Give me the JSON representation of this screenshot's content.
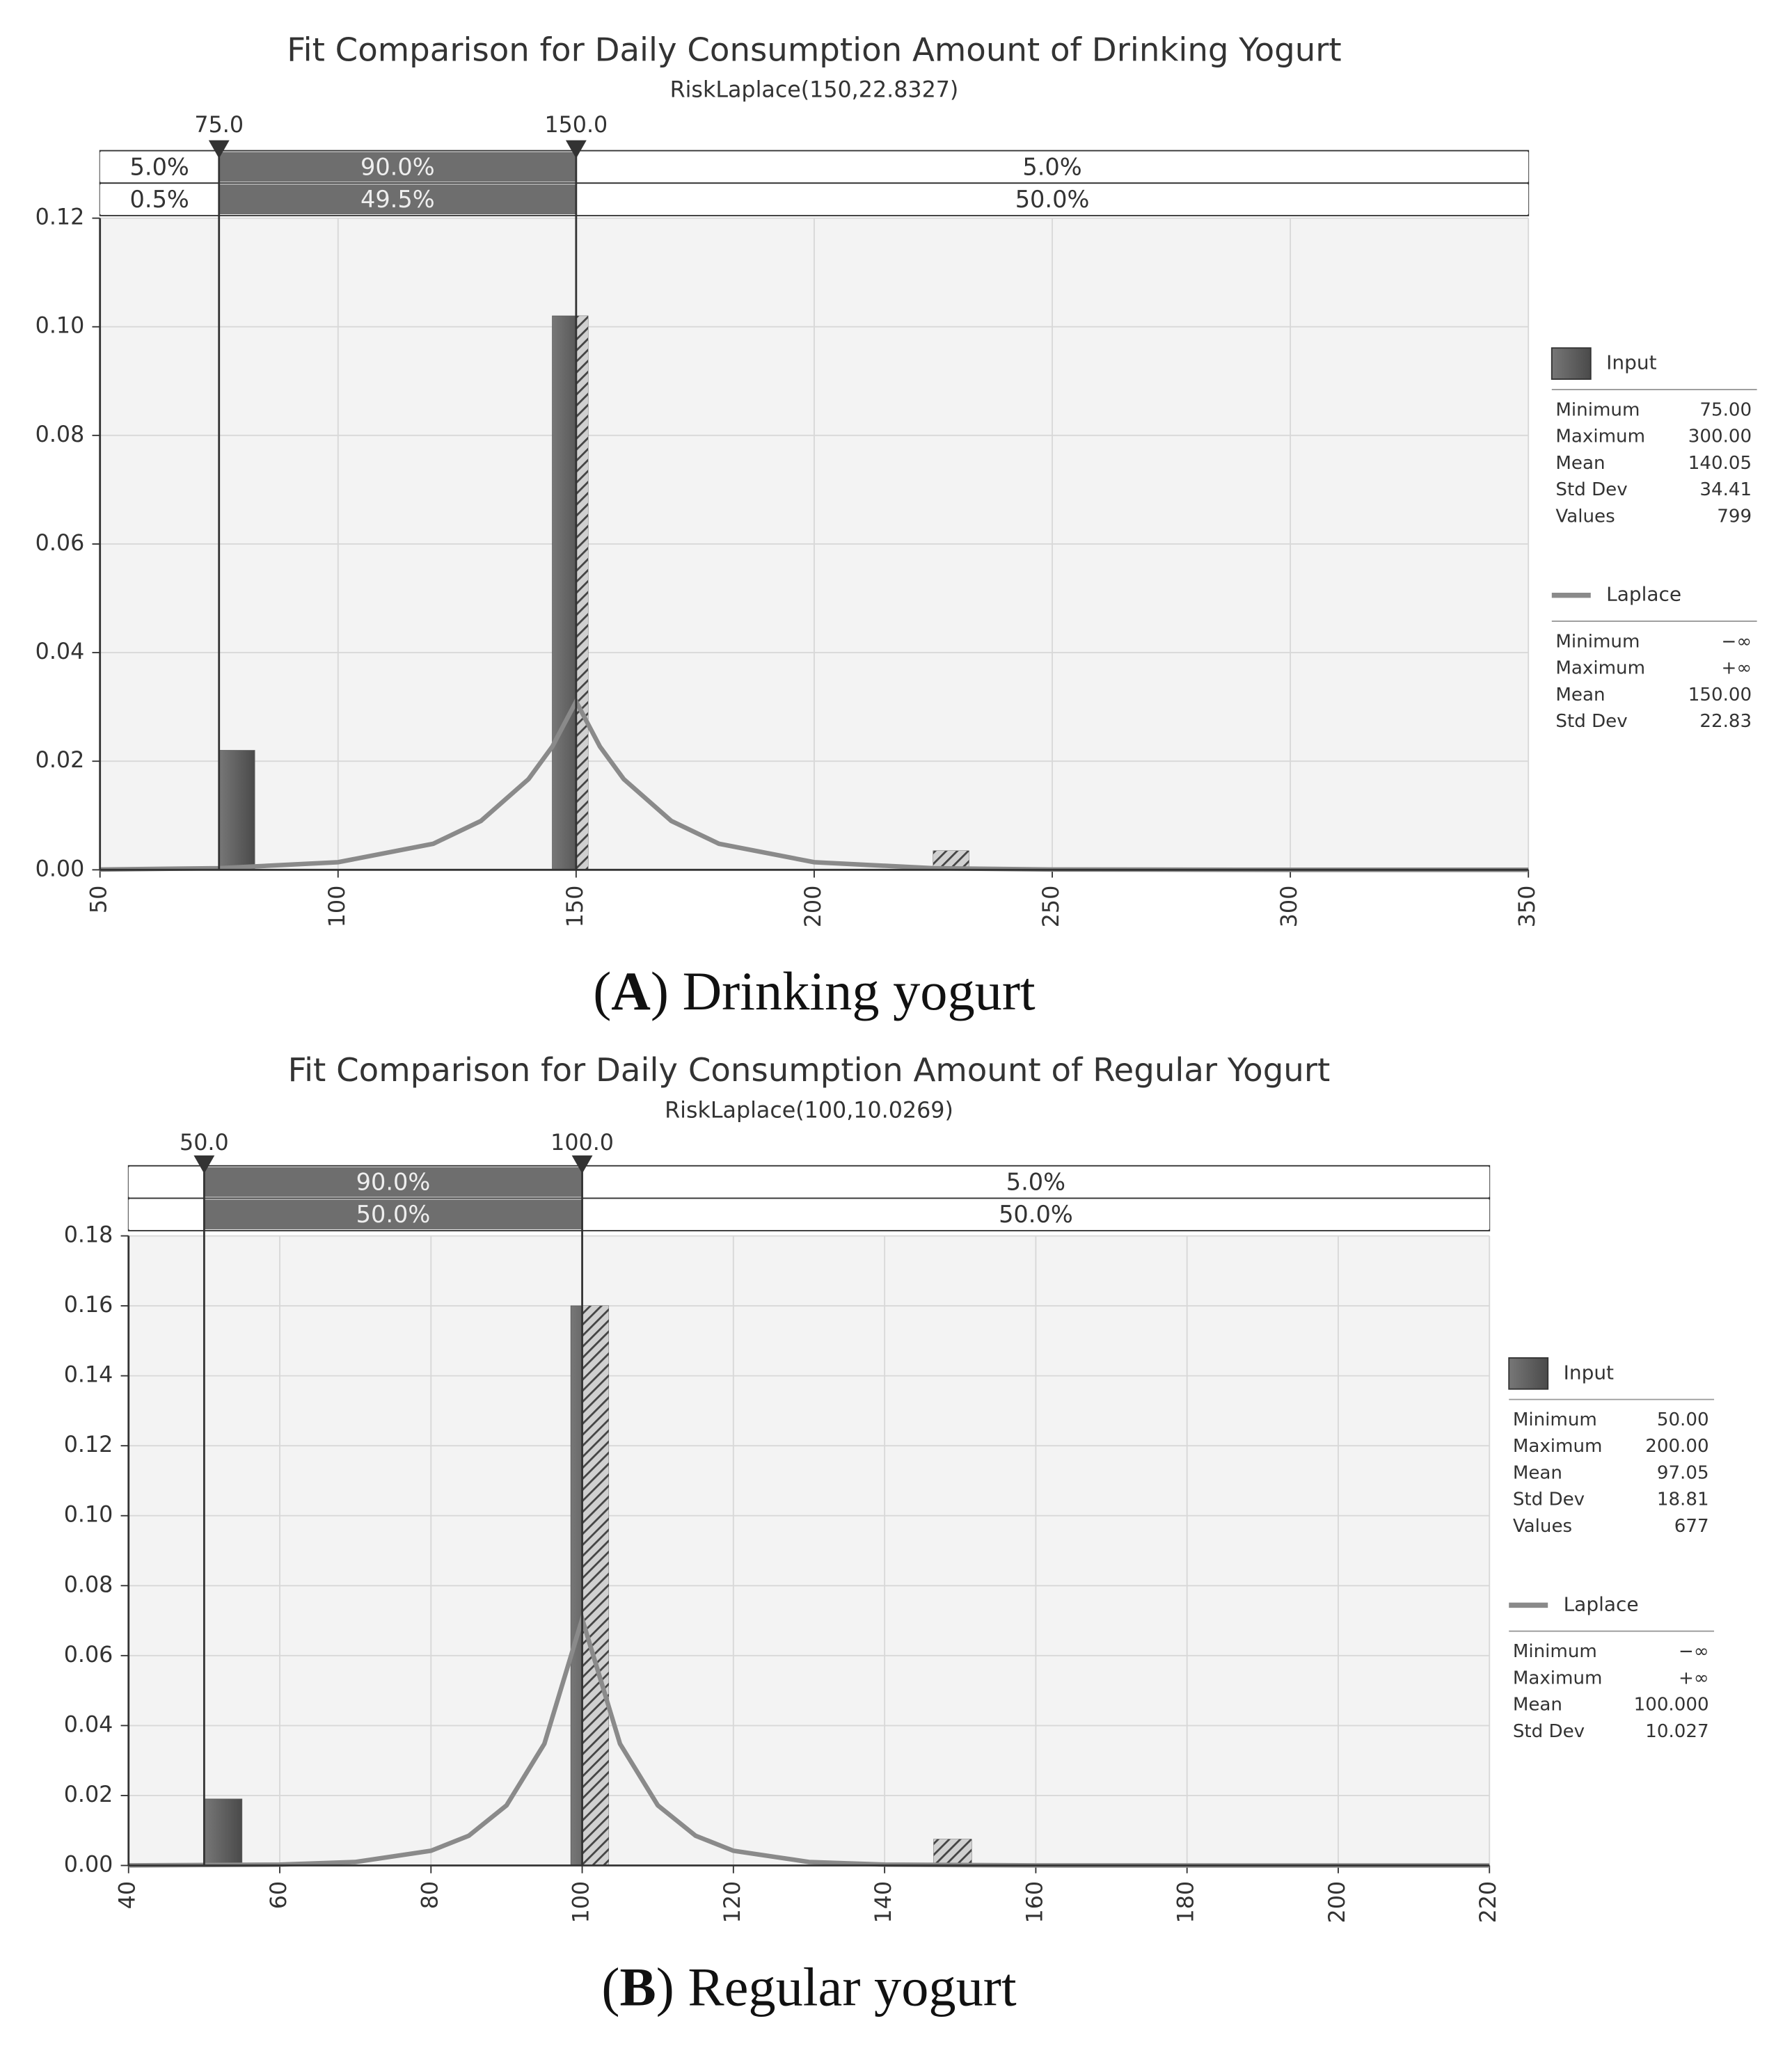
{
  "chart_data": [
    {
      "type": "histogram",
      "title": "Fit Comparison for Daily Consumption Amount of Drinking Yogurt",
      "subtitle": "RiskLaplace(150,22.8327)",
      "caption": "(A) Drinking yogurt",
      "xlim": [
        50,
        350
      ],
      "xticks": [
        50,
        100,
        150,
        200,
        250,
        300,
        350
      ],
      "ylim": [
        0,
        0.12
      ],
      "yticks": [
        {
          "value": 0,
          "label": "0.00"
        },
        {
          "value": 0.02,
          "label": "0.02"
        },
        {
          "value": 0.04,
          "label": "0.04"
        },
        {
          "value": 0.06,
          "label": "0.06"
        },
        {
          "value": 0.08,
          "label": "0.08"
        },
        {
          "value": 0.1,
          "label": "0.10"
        },
        {
          "value": 0.12,
          "label": "0.12"
        }
      ],
      "grid": true,
      "delimiters": [
        {
          "value": 75,
          "label": "75.0"
        },
        {
          "value": 150,
          "label": "150.0"
        }
      ],
      "band_rows": [
        {
          "values": [
            5,
            90,
            5
          ],
          "value_labels": [
            "5.0%",
            "90.0%",
            "5.0%"
          ]
        },
        {
          "values": [
            0.5,
            49.5,
            50
          ],
          "value_labels": [
            "0.5%",
            "49.5%",
            "50.0%"
          ]
        }
      ],
      "series": [
        {
          "name": "Input",
          "kind": "bars",
          "color": "#5e5e5e",
          "bins": [
            75,
            82.5,
            145,
            152.5,
            225,
            232.5,
            300
          ],
          "values": [
            0.022,
            0,
            0.102,
            0,
            0.0035,
            0
          ],
          "stats": [
            [
              "Minimum",
              "75.00"
            ],
            [
              "Maximum",
              "300.00"
            ],
            [
              "Mean",
              "140.05"
            ],
            [
              "Std Dev",
              "34.41"
            ],
            [
              "Values",
              "799"
            ]
          ]
        },
        {
          "name": "Laplace",
          "kind": "line",
          "color": "#8a8a8a",
          "x": [
            50,
            75,
            100,
            120,
            130,
            140,
            145,
            150,
            155,
            160,
            170,
            180,
            200,
            225,
            250,
            300,
            350
          ],
          "values": [
            6e-05,
            0.0003,
            0.0014,
            0.0048,
            0.009,
            0.0167,
            0.0227,
            0.031,
            0.0227,
            0.0167,
            0.009,
            0.0048,
            0.0014,
            0.0003,
            6e-05,
            0,
            0
          ],
          "stats": [
            [
              "Minimum",
              "−∞"
            ],
            [
              "Maximum",
              "+∞"
            ],
            [
              "Mean",
              "150.00"
            ],
            [
              "Std Dev",
              "22.83"
            ]
          ]
        }
      ]
    },
    {
      "type": "histogram",
      "title": "Fit Comparison for Daily Consumption Amount of Regular Yogurt",
      "subtitle": "RiskLaplace(100,10.0269)",
      "caption": "(B) Regular yogurt",
      "xlim": [
        40,
        220
      ],
      "xticks": [
        40,
        60,
        80,
        100,
        120,
        140,
        160,
        180,
        200,
        220
      ],
      "ylim": [
        0,
        0.18
      ],
      "yticks": [
        {
          "value": 0,
          "label": "0.00"
        },
        {
          "value": 0.02,
          "label": "0.02"
        },
        {
          "value": 0.04,
          "label": "0.04"
        },
        {
          "value": 0.06,
          "label": "0.06"
        },
        {
          "value": 0.08,
          "label": "0.08"
        },
        {
          "value": 0.1,
          "label": "0.10"
        },
        {
          "value": 0.12,
          "label": "0.12"
        },
        {
          "value": 0.14,
          "label": "0.14"
        },
        {
          "value": 0.16,
          "label": "0.16"
        },
        {
          "value": 0.18,
          "label": "0.18"
        }
      ],
      "grid": true,
      "delimiters": [
        {
          "value": 50,
          "label": "50.0"
        },
        {
          "value": 100,
          "label": "100.0"
        }
      ],
      "band_rows": [
        {
          "values": [
            null,
            90,
            5
          ],
          "value_labels": [
            null,
            "90.0%",
            "5.0%"
          ]
        },
        {
          "values": [
            null,
            50,
            50
          ],
          "value_labels": [
            null,
            "50.0%",
            "50.0%"
          ]
        }
      ],
      "series": [
        {
          "name": "Input",
          "kind": "bars",
          "color": "#5e5e5e",
          "bins": [
            50,
            55,
            98.5,
            103.5,
            146.5,
            151.5,
            200
          ],
          "values": [
            0.019,
            0,
            0.16,
            0,
            0.0075,
            0
          ],
          "stats": [
            [
              "Minimum",
              "50.00"
            ],
            [
              "Maximum",
              "200.00"
            ],
            [
              "Mean",
              "97.05"
            ],
            [
              "Std Dev",
              "18.81"
            ],
            [
              "Values",
              "677"
            ]
          ]
        },
        {
          "name": "Laplace",
          "kind": "line",
          "color": "#8a8a8a",
          "x": [
            40,
            60,
            70,
            80,
            85,
            90,
            95,
            100,
            105,
            110,
            115,
            120,
            130,
            140,
            160,
            220
          ],
          "values": [
            1.5e-05,
            0.00025,
            0.001,
            0.0042,
            0.0085,
            0.0172,
            0.0348,
            0.0705,
            0.0348,
            0.0172,
            0.0085,
            0.0042,
            0.001,
            0.00025,
            1.5e-05,
            0
          ],
          "stats": [
            [
              "Minimum",
              "−∞"
            ],
            [
              "Maximum",
              "+∞"
            ],
            [
              "Mean",
              "100.000"
            ],
            [
              "Std Dev",
              "10.027"
            ]
          ]
        }
      ]
    }
  ]
}
